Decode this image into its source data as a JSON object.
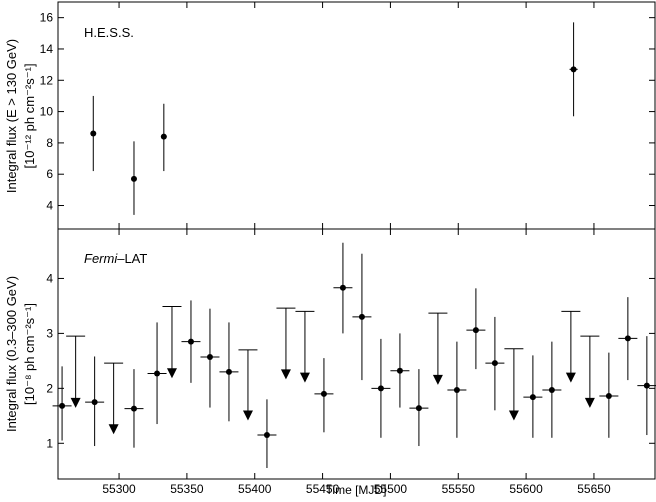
{
  "chart_data": [
    {
      "type": "scatter",
      "panel_label": "H.E.S.S.",
      "ylabel_lines": [
        "Integral flux (E > 130 GeV)",
        "[10⁻¹² ph cm⁻²s⁻¹]"
      ],
      "xlim": [
        55255,
        55695
      ],
      "ylim": [
        2.5,
        17
      ],
      "yticks": [
        4,
        6,
        8,
        10,
        12,
        14,
        16
      ],
      "points": [
        {
          "x": 55281,
          "y": 8.6,
          "ylo": 6.2,
          "yhi": 11.0
        },
        {
          "x": 55311,
          "y": 5.7,
          "ylo": 3.4,
          "yhi": 8.1
        },
        {
          "x": 55333,
          "y": 8.4,
          "ylo": 6.2,
          "yhi": 10.5,
          "xerr": 2
        },
        {
          "x": 55635,
          "y": 12.7,
          "ylo": 9.7,
          "yhi": 15.7,
          "xerr": 3
        }
      ]
    },
    {
      "type": "scatter",
      "panel_label_italic": "Fermi",
      "panel_label_rest": "–LAT",
      "ylabel_lines": [
        "Integral flux (0.3–300 GeV)",
        "[10⁻⁸ ph cm⁻²s⁻¹]"
      ],
      "xlabel": "Time [MJD]",
      "xlim": [
        55255,
        55695
      ],
      "ylim": [
        0.35,
        4.9
      ],
      "xticks": [
        55300,
        55350,
        55400,
        55450,
        55500,
        55550,
        55600,
        55650
      ],
      "yticks": [
        1,
        2,
        3,
        4
      ],
      "points": [
        {
          "x": 55258,
          "y": 1.68,
          "ylo": 1.05,
          "yhi": 2.4
        },
        {
          "x": 55282,
          "y": 1.75,
          "ylo": 0.95,
          "yhi": 2.58
        },
        {
          "x": 55311,
          "y": 1.63,
          "ylo": 0.92,
          "yhi": 2.35
        },
        {
          "x": 55328,
          "y": 2.27,
          "ylo": 1.35,
          "yhi": 3.2
        },
        {
          "x": 55353,
          "y": 2.85,
          "ylo": 2.1,
          "yhi": 3.6
        },
        {
          "x": 55367,
          "y": 2.57,
          "ylo": 1.65,
          "yhi": 3.45
        },
        {
          "x": 55381,
          "y": 2.3,
          "ylo": 1.4,
          "yhi": 3.2
        },
        {
          "x": 55409,
          "y": 1.15,
          "ylo": 0.55,
          "yhi": 1.8
        },
        {
          "x": 55451,
          "y": 1.9,
          "ylo": 1.2,
          "yhi": 2.55
        },
        {
          "x": 55465,
          "y": 3.83,
          "ylo": 3.0,
          "yhi": 4.65
        },
        {
          "x": 55479,
          "y": 3.3,
          "ylo": 2.15,
          "yhi": 4.45
        },
        {
          "x": 55493,
          "y": 2.0,
          "ylo": 1.1,
          "yhi": 2.9
        },
        {
          "x": 55507,
          "y": 2.32,
          "ylo": 1.65,
          "yhi": 3.0
        },
        {
          "x": 55521,
          "y": 1.64,
          "ylo": 0.95,
          "yhi": 2.35
        },
        {
          "x": 55549,
          "y": 1.97,
          "ylo": 1.1,
          "yhi": 2.85
        },
        {
          "x": 55563,
          "y": 3.06,
          "ylo": 2.35,
          "yhi": 3.82
        },
        {
          "x": 55577,
          "y": 2.46,
          "ylo": 1.6,
          "yhi": 3.3
        },
        {
          "x": 55605,
          "y": 1.84,
          "ylo": 1.1,
          "yhi": 2.6
        },
        {
          "x": 55619,
          "y": 1.97,
          "ylo": 1.1,
          "yhi": 2.85
        },
        {
          "x": 55661,
          "y": 1.86,
          "ylo": 1.1,
          "yhi": 2.65
        },
        {
          "x": 55675,
          "y": 2.91,
          "ylo": 2.15,
          "yhi": 3.66
        },
        {
          "x": 55689,
          "y": 2.05,
          "ylo": 1.15,
          "yhi": 2.95
        }
      ],
      "upper_limits": [
        {
          "x": 55268,
          "y": 2.95,
          "tip": 1.68
        },
        {
          "x": 55296,
          "y": 2.46,
          "tip": 1.2
        },
        {
          "x": 55339,
          "y": 3.49,
          "tip": 2.22
        },
        {
          "x": 55395,
          "y": 2.7,
          "tip": 1.45
        },
        {
          "x": 55423,
          "y": 3.46,
          "tip": 2.2
        },
        {
          "x": 55437,
          "y": 3.4,
          "tip": 2.14
        },
        {
          "x": 55535,
          "y": 3.37,
          "tip": 2.1
        },
        {
          "x": 55591,
          "y": 2.72,
          "tip": 1.45
        },
        {
          "x": 55633,
          "y": 3.4,
          "tip": 2.14
        },
        {
          "x": 55647,
          "y": 2.95,
          "tip": 1.68
        }
      ]
    }
  ]
}
